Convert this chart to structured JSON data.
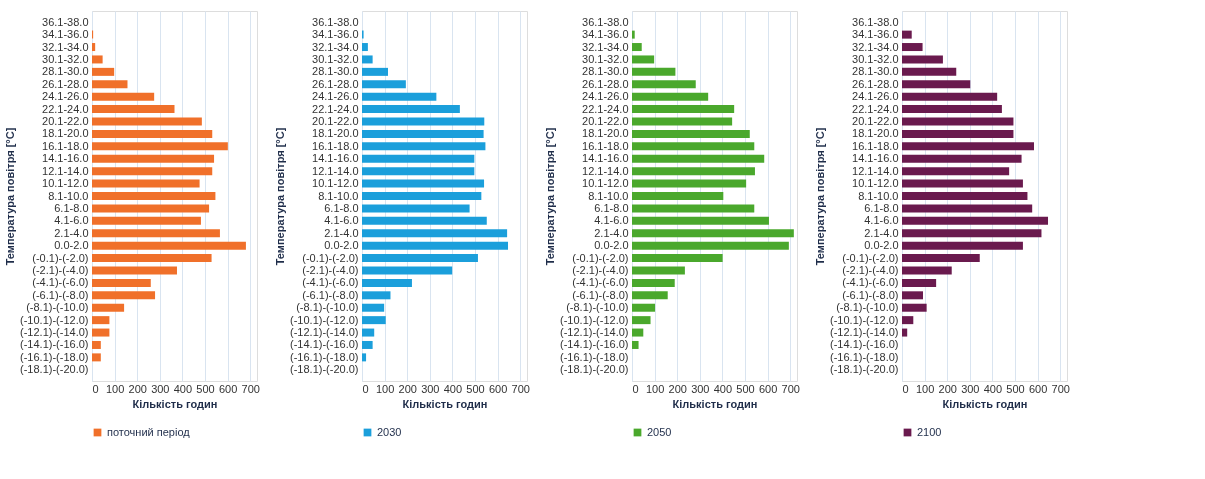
{
  "chart_data": [
    {
      "type": "bar",
      "orientation": "horizontal",
      "xlabel": "Кількість годин",
      "ylabel": "Температура повітря [°C]",
      "xlim": [
        0,
        730
      ],
      "xticks": [
        0,
        100,
        200,
        300,
        400,
        500,
        600,
        700
      ],
      "grid": "x",
      "legend": "bottom",
      "categories": [
        "36.1-38.0",
        "34.1-36.0",
        "32.1-34.0",
        "30.1-32.0",
        "28.1-30.0",
        "26.1-28.0",
        "24.1-26.0",
        "22.1-24.0",
        "20.1-22.0",
        "18.1-20.0",
        "16.1-18.0",
        "14.1-16.0",
        "12.1-14.0",
        "10.1-12.0",
        "8.1-10.0",
        "6.1-8.0",
        "4.1-6.0",
        "2.1-4.0",
        "0.0-2.0",
        "(-0.1)-(-2.0)",
        "(-2.1)-(-4.0)",
        "(-4.1)-(-6.0)",
        "(-6.1)-(-8.0)",
        "(-8.1)-(-10.0)",
        "(-10.1)-(-12.0)",
        "(-12.1)-(-14.0)",
        "(-14.1)-(-16.0)",
        "(-16.1)-(-18.0)",
        "(-18.1)-(-20.0)"
      ],
      "series": [
        {
          "name": "поточний період",
          "color": "#f0702a",
          "values": [
            null,
            5,
            14,
            47,
            98,
            157,
            275,
            365,
            486,
            532,
            601,
            540,
            532,
            476,
            546,
            518,
            482,
            566,
            681,
            529,
            376,
            260,
            279,
            142,
            77,
            77,
            39,
            39,
            null
          ]
        }
      ]
    },
    {
      "type": "bar",
      "orientation": "horizontal",
      "xlabel": "Кількість годин",
      "ylabel": "Температура повітря [°C]",
      "xlim": [
        0,
        730
      ],
      "xticks": [
        0,
        100,
        200,
        300,
        400,
        500,
        600,
        700
      ],
      "grid": "x",
      "legend": "bottom",
      "categories": [
        "36.1-38.0",
        "34.1-36.0",
        "32.1-34.0",
        "30.1-32.0",
        "28.1-30.0",
        "26.1-28.0",
        "24.1-26.0",
        "22.1-24.0",
        "20.1-22.0",
        "18.1-20.0",
        "16.1-18.0",
        "14.1-16.0",
        "12.1-14.0",
        "10.1-12.0",
        "8.1-10.0",
        "6.1-8.0",
        "4.1-6.0",
        "2.1-4.0",
        "0.0-2.0",
        "(-0.1)-(-2.0)",
        "(-2.1)-(-4.0)",
        "(-4.1)-(-6.0)",
        "(-6.1)-(-8.0)",
        "(-8.1)-(-10.0)",
        "(-10.1)-(-12.0)",
        "(-12.1)-(-14.0)",
        "(-14.1)-(-16.0)",
        "(-16.1)-(-18.0)",
        "(-18.1)-(-20.0)"
      ],
      "series": [
        {
          "name": "2030",
          "color": "#1b9fdb",
          "values": [
            null,
            7,
            26,
            47,
            115,
            194,
            329,
            433,
            541,
            538,
            546,
            497,
            497,
            540,
            528,
            476,
            552,
            642,
            646,
            513,
            399,
            221,
            126,
            98,
            105,
            54,
            47,
            18,
            null
          ]
        }
      ]
    },
    {
      "type": "bar",
      "orientation": "horizontal",
      "xlabel": "Кількість годин",
      "ylabel": "Температура повітря [°C]",
      "xlim": [
        0,
        730
      ],
      "xticks": [
        0,
        100,
        200,
        300,
        400,
        500,
        600,
        700
      ],
      "grid": "x",
      "legend": "bottom",
      "categories": [
        "36.1-38.0",
        "34.1-36.0",
        "32.1-34.0",
        "30.1-32.0",
        "28.1-30.0",
        "26.1-28.0",
        "24.1-26.0",
        "22.1-24.0",
        "20.1-22.0",
        "18.1-20.0",
        "16.1-18.0",
        "14.1-16.0",
        "12.1-14.0",
        "10.1-12.0",
        "8.1-10.0",
        "6.1-8.0",
        "4.1-6.0",
        "2.1-4.0",
        "0.0-2.0",
        "(-0.1)-(-2.0)",
        "(-2.1)-(-4.0)",
        "(-4.1)-(-6.0)",
        "(-6.1)-(-8.0)",
        "(-8.1)-(-10.0)",
        "(-10.1)-(-12.0)",
        "(-12.1)-(-14.0)",
        "(-14.1)-(-16.0)",
        "(-16.1)-(-18.0)",
        "(-18.1)-(-20.0)"
      ],
      "series": [
        {
          "name": "2050",
          "color": "#4aa82c",
          "values": [
            null,
            12,
            43,
            98,
            192,
            282,
            337,
            452,
            443,
            521,
            541,
            585,
            544,
            505,
            404,
            541,
            606,
            716,
            694,
            401,
            234,
            189,
            158,
            102,
            82,
            50,
            29,
            null,
            null
          ]
        }
      ]
    },
    {
      "type": "bar",
      "orientation": "horizontal",
      "xlabel": "Кількість годин",
      "ylabel": "Температура повітря [°C]",
      "xlim": [
        0,
        730
      ],
      "xticks": [
        0,
        100,
        200,
        300,
        400,
        500,
        600,
        700
      ],
      "grid": "x",
      "legend": "bottom",
      "categories": [
        "36.1-38.0",
        "34.1-36.0",
        "32.1-34.0",
        "30.1-32.0",
        "28.1-30.0",
        "26.1-28.0",
        "24.1-26.0",
        "22.1-24.0",
        "20.1-22.0",
        "18.1-20.0",
        "16.1-18.0",
        "14.1-16.0",
        "12.1-14.0",
        "10.1-12.0",
        "8.1-10.0",
        "6.1-8.0",
        "4.1-6.0",
        "2.1-4.0",
        "0.0-2.0",
        "(-0.1)-(-2.0)",
        "(-2.1)-(-4.0)",
        "(-4.1)-(-6.0)",
        "(-6.1)-(-8.0)",
        "(-8.1)-(-10.0)",
        "(-10.1)-(-12.0)",
        "(-12.1)-(-14.0)",
        "(-14.1)-(-16.0)",
        "(-16.1)-(-18.0)",
        "(-18.1)-(-20.0)"
      ],
      "series": [
        {
          "name": "2100",
          "color": "#6a1a4e",
          "values": [
            null,
            43,
            91,
            181,
            240,
            302,
            421,
            442,
            493,
            493,
            584,
            529,
            474,
            535,
            555,
            576,
            646,
            617,
            535,
            344,
            220,
            151,
            93,
            109,
            50,
            23,
            null,
            null,
            null
          ]
        }
      ]
    }
  ]
}
